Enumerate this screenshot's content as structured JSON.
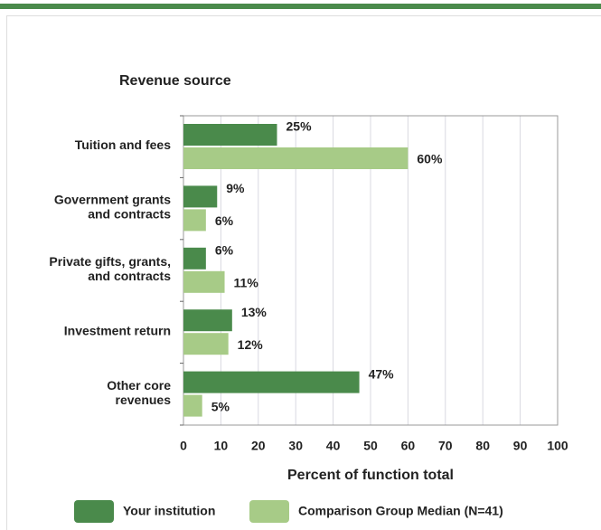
{
  "chart_data": {
    "type": "bar",
    "orientation": "horizontal",
    "title": "Revenue source",
    "xlabel": "Percent of function total",
    "categories": [
      "Tuition and fees",
      "Government grants\nand contracts",
      "Private gifts, grants,\nand contracts",
      "Investment return",
      "Other core\nrevenues"
    ],
    "series": [
      {
        "name": "Your institution",
        "color": "#4a8a4b",
        "values": [
          25,
          9,
          6,
          13,
          47
        ],
        "value_labels": [
          "25%",
          "9%",
          "6%",
          "13%",
          "47%"
        ]
      },
      {
        "name": "Comparison Group Median (N=41)",
        "color": "#a7cb87",
        "values": [
          60,
          6,
          11,
          12,
          5
        ],
        "value_labels": [
          "60%",
          "6%",
          "11%",
          "12%",
          "5%"
        ]
      }
    ],
    "xlim": [
      0,
      100
    ],
    "xticks": [
      0,
      10,
      20,
      30,
      40,
      50,
      60,
      70,
      80,
      90,
      100
    ],
    "grid": true
  }
}
